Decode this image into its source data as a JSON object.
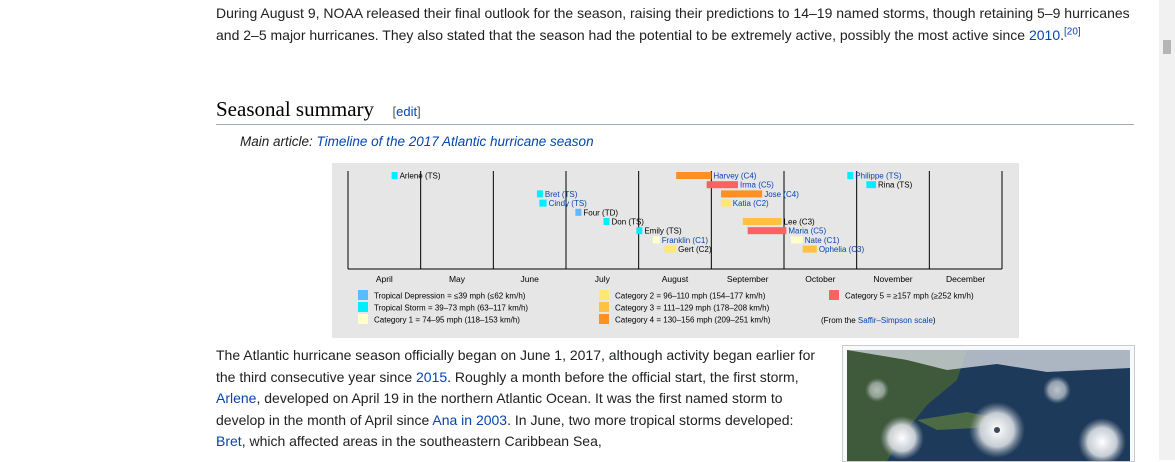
{
  "intro": {
    "text_a": "During August 9, NOAA released their final outlook for the season, raising their predictions to 14–19 named storms, though retaining 5–9 hurricanes and 2–5 major hurricanes. They also stated that the season had the potential to be extremely active, possibly the most active since ",
    "link_2010": "2010",
    "text_b": ".",
    "ref": "[20]"
  },
  "section": {
    "title": "Seasonal summary",
    "edit_open": "[",
    "edit_label": "edit",
    "edit_close": "]"
  },
  "hatnote": {
    "prefix": "Main article: ",
    "link": "Timeline of the 2017 Atlantic hurricane season"
  },
  "timeline": {
    "months": [
      "April",
      "May",
      "June",
      "July",
      "August",
      "September",
      "October",
      "November",
      "December"
    ],
    "storms": [
      {
        "label": "Arlene (TS)",
        "color": "#00eeff",
        "start": "Apr 19",
        "end": "Apr 21",
        "link": false
      },
      {
        "label": "Bret (TS)",
        "color": "#00eeff",
        "start": "Jun 19",
        "end": "Jun 20",
        "link": true
      },
      {
        "label": "Cindy (TS)",
        "color": "#00eeff",
        "start": "Jun 20",
        "end": "Jun 23",
        "link": true
      },
      {
        "label": "Four (TD)",
        "color": "#5ebaff",
        "start": "Jul 5",
        "end": "Jul 7",
        "link": false
      },
      {
        "label": "Don (TS)",
        "color": "#00eeff",
        "start": "Jul 17",
        "end": "Jul 18",
        "link": false
      },
      {
        "label": "Emily (TS)",
        "color": "#00eeff",
        "start": "Jul 31",
        "end": "Aug 1",
        "link": false
      },
      {
        "label": "Franklin (C1)",
        "color": "#ffffcc",
        "start": "Aug 7",
        "end": "Aug 10",
        "link": true
      },
      {
        "label": "Gert (C2)",
        "color": "#ffe775",
        "start": "Aug 12",
        "end": "Aug 17",
        "link": false
      },
      {
        "label": "Harvey (C4)",
        "color": "#ff8f20",
        "start": "Aug 17",
        "end": "Sep 1",
        "link": true
      },
      {
        "label": "Irma (C5)",
        "color": "#ff6060",
        "start": "Aug 30",
        "end": "Sep 12",
        "link": true
      },
      {
        "label": "Jose (C4)",
        "color": "#ff8f20",
        "start": "Sep 5",
        "end": "Sep 22",
        "link": true
      },
      {
        "label": "Katia (C2)",
        "color": "#ffe775",
        "start": "Sep 5",
        "end": "Sep 9",
        "link": true
      },
      {
        "label": "Lee (C3)",
        "color": "#ffc140",
        "start": "Sep 14",
        "end": "Sep 30",
        "link": false
      },
      {
        "label": "Maria (C5)",
        "color": "#ff6060",
        "start": "Sep 16",
        "end": "Oct 2",
        "link": true
      },
      {
        "label": "Nate (C1)",
        "color": "#ffffcc",
        "start": "Oct 4",
        "end": "Oct 9",
        "link": true
      },
      {
        "label": "Ophelia (C3)",
        "color": "#ffc140",
        "start": "Oct 9",
        "end": "Oct 15",
        "link": true
      },
      {
        "label": "Philippe (TS)",
        "color": "#00eeff",
        "start": "Oct 28",
        "end": "Oct 29",
        "link": true
      },
      {
        "label": "Rina (TS)",
        "color": "#00eeff",
        "start": "Nov 5",
        "end": "Nov 9",
        "link": false
      }
    ],
    "legend": [
      {
        "label": "Tropical Depression = ≤39 mph (≤62 km/h)",
        "color": "#5ebaff"
      },
      {
        "label": "Tropical Storm = 39–73 mph (63–117 km/h)",
        "color": "#00eeff"
      },
      {
        "label": "Category 1 = 74–95 mph (118–153 km/h)",
        "color": "#ffffcc"
      },
      {
        "label": "Category 2 = 96–110 mph (154–177 km/h)",
        "color": "#ffe775"
      },
      {
        "label": "Category 3 = 111–129 mph (178–208 km/h)",
        "color": "#ffc140"
      },
      {
        "label": "Category 4 = 130–156 mph (209–251 km/h)",
        "color": "#ff8f20"
      },
      {
        "label": "Category 5 = ≥157 mph (≥252 km/h)",
        "color": "#ff6060"
      }
    ],
    "scale_note_prefix": "(From the ",
    "scale_note_link": "Saffir–Simpson scale",
    "scale_note_suffix": ")"
  },
  "summary": {
    "t1": "The Atlantic hurricane season officially began on June 1, 2017, although activity began earlier for the third consecutive year since ",
    "l_2015": "2015",
    "t2": ". Roughly a month before the official start, the first storm, ",
    "l_arlene": "Arlene",
    "t3": ", developed on April 19 in the northern Atlantic Ocean. It was the first named storm to develop in the month of April since ",
    "l_ana": "Ana in 2003",
    "t4": ". In June, two more tropical storms developed: ",
    "l_bret": "Bret",
    "t5": ", which affected areas in the southeastern Caribbean Sea,"
  },
  "colors": {
    "link": "#0645ad",
    "text": "#202122",
    "timeline_bg": "#e6e6e6"
  }
}
